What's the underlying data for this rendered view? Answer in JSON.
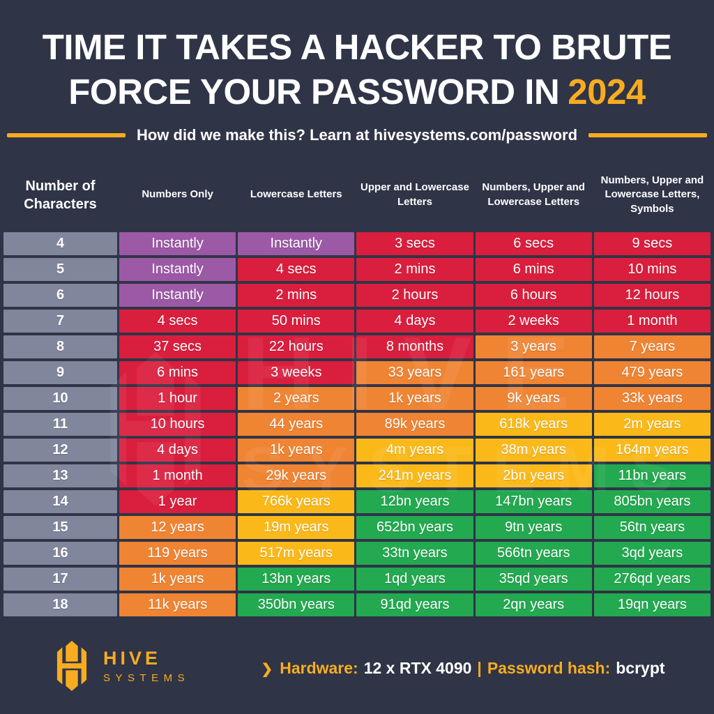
{
  "page": {
    "background": "#2F3447",
    "accent": "#F8AC20",
    "text_color": "#FFFFFF"
  },
  "title": {
    "line1": "TIME IT TAKES A HACKER TO BRUTE",
    "line2": "FORCE YOUR PASSWORD IN",
    "year": "2024"
  },
  "subtitle": {
    "text": "How did we make this? Learn at hivesystems.com/password"
  },
  "colors": {
    "gray": "#80869B",
    "purple": "#9C59A6",
    "red": "#DA1E3D",
    "orange": "#EF8433",
    "amber": "#FBB919",
    "green": "#23A950"
  },
  "table": {
    "headers": [
      "Number of Characters",
      "Numbers Only",
      "Lowercase Letters",
      "Upper and Lowercase Letters",
      "Numbers, Upper and Lowercase Letters",
      "Numbers, Upper and Lowercase Letters, Symbols"
    ],
    "rows": [
      {
        "chars": "4",
        "cells": [
          {
            "text": "Instantly",
            "color": "purple"
          },
          {
            "text": "Instantly",
            "color": "purple"
          },
          {
            "text": "3 secs",
            "color": "red"
          },
          {
            "text": "6 secs",
            "color": "red"
          },
          {
            "text": "9 secs",
            "color": "red"
          }
        ]
      },
      {
        "chars": "5",
        "cells": [
          {
            "text": "Instantly",
            "color": "purple"
          },
          {
            "text": "4 secs",
            "color": "red"
          },
          {
            "text": "2 mins",
            "color": "red"
          },
          {
            "text": "6 mins",
            "color": "red"
          },
          {
            "text": "10 mins",
            "color": "red"
          }
        ]
      },
      {
        "chars": "6",
        "cells": [
          {
            "text": "Instantly",
            "color": "purple"
          },
          {
            "text": "2 mins",
            "color": "red"
          },
          {
            "text": "2 hours",
            "color": "red"
          },
          {
            "text": "6 hours",
            "color": "red"
          },
          {
            "text": "12 hours",
            "color": "red"
          }
        ]
      },
      {
        "chars": "7",
        "cells": [
          {
            "text": "4 secs",
            "color": "red"
          },
          {
            "text": "50 mins",
            "color": "red"
          },
          {
            "text": "4 days",
            "color": "red"
          },
          {
            "text": "2 weeks",
            "color": "red"
          },
          {
            "text": "1 month",
            "color": "red"
          }
        ]
      },
      {
        "chars": "8",
        "cells": [
          {
            "text": "37 secs",
            "color": "red"
          },
          {
            "text": "22 hours",
            "color": "red"
          },
          {
            "text": "8 months",
            "color": "red"
          },
          {
            "text": "3 years",
            "color": "orange"
          },
          {
            "text": "7 years",
            "color": "orange"
          }
        ]
      },
      {
        "chars": "9",
        "cells": [
          {
            "text": "6 mins",
            "color": "red"
          },
          {
            "text": "3 weeks",
            "color": "red"
          },
          {
            "text": "33 years",
            "color": "orange"
          },
          {
            "text": "161 years",
            "color": "orange"
          },
          {
            "text": "479 years",
            "color": "orange"
          }
        ]
      },
      {
        "chars": "10",
        "cells": [
          {
            "text": "1 hour",
            "color": "red"
          },
          {
            "text": "2 years",
            "color": "orange"
          },
          {
            "text": "1k years",
            "color": "orange"
          },
          {
            "text": "9k years",
            "color": "orange"
          },
          {
            "text": "33k years",
            "color": "orange"
          }
        ]
      },
      {
        "chars": "11",
        "cells": [
          {
            "text": "10 hours",
            "color": "red"
          },
          {
            "text": "44 years",
            "color": "orange"
          },
          {
            "text": "89k years",
            "color": "orange"
          },
          {
            "text": "618k years",
            "color": "amber"
          },
          {
            "text": "2m years",
            "color": "amber"
          }
        ]
      },
      {
        "chars": "12",
        "cells": [
          {
            "text": "4 days",
            "color": "red"
          },
          {
            "text": "1k years",
            "color": "orange"
          },
          {
            "text": "4m years",
            "color": "amber"
          },
          {
            "text": "38m years",
            "color": "amber"
          },
          {
            "text": "164m years",
            "color": "amber"
          }
        ]
      },
      {
        "chars": "13",
        "cells": [
          {
            "text": "1 month",
            "color": "red"
          },
          {
            "text": "29k years",
            "color": "orange"
          },
          {
            "text": "241m years",
            "color": "amber"
          },
          {
            "text": "2bn years",
            "color": "amber"
          },
          {
            "text": "11bn years",
            "color": "green"
          }
        ]
      },
      {
        "chars": "14",
        "cells": [
          {
            "text": "1 year",
            "color": "red"
          },
          {
            "text": "766k years",
            "color": "amber"
          },
          {
            "text": "12bn years",
            "color": "green"
          },
          {
            "text": "147bn years",
            "color": "green"
          },
          {
            "text": "805bn years",
            "color": "green"
          }
        ]
      },
      {
        "chars": "15",
        "cells": [
          {
            "text": "12 years",
            "color": "orange"
          },
          {
            "text": "19m years",
            "color": "amber"
          },
          {
            "text": "652bn years",
            "color": "green"
          },
          {
            "text": "9tn years",
            "color": "green"
          },
          {
            "text": "56tn years",
            "color": "green"
          }
        ]
      },
      {
        "chars": "16",
        "cells": [
          {
            "text": "119 years",
            "color": "orange"
          },
          {
            "text": "517m years",
            "color": "amber"
          },
          {
            "text": "33tn years",
            "color": "green"
          },
          {
            "text": "566tn years",
            "color": "green"
          },
          {
            "text": "3qd years",
            "color": "green"
          }
        ]
      },
      {
        "chars": "17",
        "cells": [
          {
            "text": "1k years",
            "color": "orange"
          },
          {
            "text": "13bn years",
            "color": "green"
          },
          {
            "text": "1qd years",
            "color": "green"
          },
          {
            "text": "35qd years",
            "color": "green"
          },
          {
            "text": "276qd years",
            "color": "green"
          }
        ]
      },
      {
        "chars": "18",
        "cells": [
          {
            "text": "11k years",
            "color": "orange"
          },
          {
            "text": "350bn years",
            "color": "green"
          },
          {
            "text": "91qd years",
            "color": "green"
          },
          {
            "text": "2qn years",
            "color": "green"
          },
          {
            "text": "19qn years",
            "color": "green"
          }
        ]
      }
    ]
  },
  "watermark": {
    "word1": "HIVE",
    "word2": "SYSTEMS"
  },
  "footer": {
    "brand_top": "HIVE",
    "brand_bottom": "SYSTEMS",
    "chevron": "❯",
    "hardware_label": "Hardware:",
    "hardware_value": "12 x RTX 4090",
    "separator": "|",
    "hash_label": "Password hash:",
    "hash_value": "bcrypt"
  },
  "chart_data": {
    "type": "table",
    "title": "Time it takes a hacker to brute force your password in 2024",
    "source_note": "How did we make this? Learn at hivesystems.com/password",
    "hardware": "12 x RTX 4090",
    "password_hash": "bcrypt",
    "columns": [
      "Number of Characters",
      "Numbers Only",
      "Lowercase Letters",
      "Upper and Lowercase Letters",
      "Numbers, Upper and Lowercase Letters",
      "Numbers, Upper and Lowercase Letters, Symbols"
    ],
    "rows": [
      [
        "4",
        "Instantly",
        "Instantly",
        "3 secs",
        "6 secs",
        "9 secs"
      ],
      [
        "5",
        "Instantly",
        "4 secs",
        "2 mins",
        "6 mins",
        "10 mins"
      ],
      [
        "6",
        "Instantly",
        "2 mins",
        "2 hours",
        "6 hours",
        "12 hours"
      ],
      [
        "7",
        "4 secs",
        "50 mins",
        "4 days",
        "2 weeks",
        "1 month"
      ],
      [
        "8",
        "37 secs",
        "22 hours",
        "8 months",
        "3 years",
        "7 years"
      ],
      [
        "9",
        "6 mins",
        "3 weeks",
        "33 years",
        "161 years",
        "479 years"
      ],
      [
        "10",
        "1 hour",
        "2 years",
        "1k years",
        "9k years",
        "33k years"
      ],
      [
        "11",
        "10 hours",
        "44 years",
        "89k years",
        "618k years",
        "2m years"
      ],
      [
        "12",
        "4 days",
        "1k years",
        "4m years",
        "38m years",
        "164m years"
      ],
      [
        "13",
        "1 month",
        "29k years",
        "241m years",
        "2bn years",
        "11bn years"
      ],
      [
        "14",
        "1 year",
        "766k years",
        "12bn years",
        "147bn years",
        "805bn years"
      ],
      [
        "15",
        "12 years",
        "19m years",
        "652bn years",
        "9tn years",
        "56tn years"
      ],
      [
        "16",
        "119 years",
        "517m years",
        "33tn years",
        "566tn years",
        "3qd years"
      ],
      [
        "17",
        "1k years",
        "13bn years",
        "1qd years",
        "35qd years",
        "276qd years"
      ],
      [
        "18",
        "11k years",
        "350bn years",
        "91qd years",
        "2qn years",
        "19qn years"
      ]
    ],
    "cell_colors": [
      [
        "gray",
        "purple",
        "purple",
        "red",
        "red",
        "red"
      ],
      [
        "gray",
        "purple",
        "red",
        "red",
        "red",
        "red"
      ],
      [
        "gray",
        "purple",
        "red",
        "red",
        "red",
        "red"
      ],
      [
        "gray",
        "red",
        "red",
        "red",
        "red",
        "red"
      ],
      [
        "gray",
        "red",
        "red",
        "red",
        "orange",
        "orange"
      ],
      [
        "gray",
        "red",
        "red",
        "orange",
        "orange",
        "orange"
      ],
      [
        "gray",
        "red",
        "orange",
        "orange",
        "orange",
        "orange"
      ],
      [
        "gray",
        "red",
        "orange",
        "orange",
        "amber",
        "amber"
      ],
      [
        "gray",
        "red",
        "orange",
        "amber",
        "amber",
        "amber"
      ],
      [
        "gray",
        "red",
        "orange",
        "amber",
        "amber",
        "green"
      ],
      [
        "gray",
        "red",
        "amber",
        "green",
        "green",
        "green"
      ],
      [
        "gray",
        "orange",
        "amber",
        "green",
        "green",
        "green"
      ],
      [
        "gray",
        "orange",
        "amber",
        "green",
        "green",
        "green"
      ],
      [
        "gray",
        "orange",
        "green",
        "green",
        "green",
        "green"
      ],
      [
        "gray",
        "orange",
        "green",
        "green",
        "green",
        "green"
      ]
    ]
  }
}
